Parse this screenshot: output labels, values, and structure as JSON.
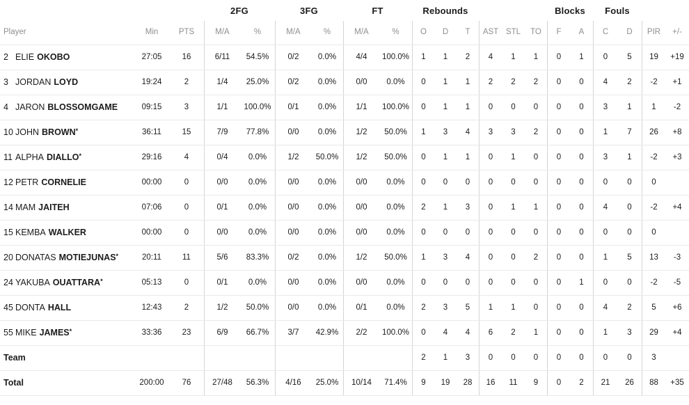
{
  "table": {
    "groups": {
      "fg2": "2FG",
      "fg3": "3FG",
      "ft": "FT",
      "rebounds": "Rebounds",
      "blocks": "Blocks",
      "fouls": "Fouls"
    },
    "columns": {
      "player": "Player",
      "min": "Min",
      "pts": "PTS",
      "ma2": "M/A",
      "pct2": "%",
      "ma3": "M/A",
      "pct3": "%",
      "maft": "M/A",
      "pctft": "%",
      "o": "O",
      "d": "D",
      "t": "T",
      "ast": "AST",
      "stl": "STL",
      "to": "TO",
      "bf": "F",
      "ba": "A",
      "fc": "C",
      "fd": "D",
      "pir": "PIR",
      "pm": "+/-"
    },
    "rows": [
      {
        "type": "player",
        "num": "2",
        "first": "ELIE",
        "last": "OKOBO",
        "star": "",
        "min": "27:05",
        "pts": "16",
        "ma2": "6/11",
        "pct2": "54.5%",
        "ma3": "0/2",
        "pct3": "0.0%",
        "maft": "4/4",
        "pctft": "100.0%",
        "o": "1",
        "d": "1",
        "t": "2",
        "ast": "4",
        "stl": "1",
        "to": "1",
        "bf": "0",
        "ba": "1",
        "fc": "0",
        "fd": "5",
        "pir": "19",
        "pm": "+19"
      },
      {
        "type": "player",
        "num": "3",
        "first": "JORDAN",
        "last": "LOYD",
        "star": "",
        "min": "19:24",
        "pts": "2",
        "ma2": "1/4",
        "pct2": "25.0%",
        "ma3": "0/2",
        "pct3": "0.0%",
        "maft": "0/0",
        "pctft": "0.0%",
        "o": "0",
        "d": "1",
        "t": "1",
        "ast": "2",
        "stl": "2",
        "to": "2",
        "bf": "0",
        "ba": "0",
        "fc": "4",
        "fd": "2",
        "pir": "-2",
        "pm": "+1"
      },
      {
        "type": "player",
        "num": "4",
        "first": "JARON",
        "last": "BLOSSOMGAME",
        "star": "",
        "min": "09:15",
        "pts": "3",
        "ma2": "1/1",
        "pct2": "100.0%",
        "ma3": "0/1",
        "pct3": "0.0%",
        "maft": "1/1",
        "pctft": "100.0%",
        "o": "0",
        "d": "1",
        "t": "1",
        "ast": "0",
        "stl": "0",
        "to": "0",
        "bf": "0",
        "ba": "0",
        "fc": "3",
        "fd": "1",
        "pir": "1",
        "pm": "-2"
      },
      {
        "type": "player",
        "num": "10",
        "first": "JOHN",
        "last": "BROWN",
        "star": "*",
        "min": "36:11",
        "pts": "15",
        "ma2": "7/9",
        "pct2": "77.8%",
        "ma3": "0/0",
        "pct3": "0.0%",
        "maft": "1/2",
        "pctft": "50.0%",
        "o": "1",
        "d": "3",
        "t": "4",
        "ast": "3",
        "stl": "3",
        "to": "2",
        "bf": "0",
        "ba": "0",
        "fc": "1",
        "fd": "7",
        "pir": "26",
        "pm": "+8"
      },
      {
        "type": "player",
        "num": "11",
        "first": "ALPHA",
        "last": "DIALLO",
        "star": "*",
        "min": "29:16",
        "pts": "4",
        "ma2": "0/4",
        "pct2": "0.0%",
        "ma3": "1/2",
        "pct3": "50.0%",
        "maft": "1/2",
        "pctft": "50.0%",
        "o": "0",
        "d": "1",
        "t": "1",
        "ast": "0",
        "stl": "1",
        "to": "0",
        "bf": "0",
        "ba": "0",
        "fc": "3",
        "fd": "1",
        "pir": "-2",
        "pm": "+3"
      },
      {
        "type": "player",
        "num": "12",
        "first": "PETR",
        "last": "CORNELIE",
        "star": "",
        "min": "00:00",
        "pts": "0",
        "ma2": "0/0",
        "pct2": "0.0%",
        "ma3": "0/0",
        "pct3": "0.0%",
        "maft": "0/0",
        "pctft": "0.0%",
        "o": "0",
        "d": "0",
        "t": "0",
        "ast": "0",
        "stl": "0",
        "to": "0",
        "bf": "0",
        "ba": "0",
        "fc": "0",
        "fd": "0",
        "pir": "0",
        "pm": ""
      },
      {
        "type": "player",
        "num": "14",
        "first": "MAM",
        "last": "JAITEH",
        "star": "",
        "min": "07:06",
        "pts": "0",
        "ma2": "0/1",
        "pct2": "0.0%",
        "ma3": "0/0",
        "pct3": "0.0%",
        "maft": "0/0",
        "pctft": "0.0%",
        "o": "2",
        "d": "1",
        "t": "3",
        "ast": "0",
        "stl": "1",
        "to": "1",
        "bf": "0",
        "ba": "0",
        "fc": "4",
        "fd": "0",
        "pir": "-2",
        "pm": "+4"
      },
      {
        "type": "player",
        "num": "15",
        "first": "KEMBA",
        "last": "WALKER",
        "star": "",
        "min": "00:00",
        "pts": "0",
        "ma2": "0/0",
        "pct2": "0.0%",
        "ma3": "0/0",
        "pct3": "0.0%",
        "maft": "0/0",
        "pctft": "0.0%",
        "o": "0",
        "d": "0",
        "t": "0",
        "ast": "0",
        "stl": "0",
        "to": "0",
        "bf": "0",
        "ba": "0",
        "fc": "0",
        "fd": "0",
        "pir": "0",
        "pm": ""
      },
      {
        "type": "player",
        "num": "20",
        "first": "DONATAS",
        "last": "MOTIEJUNAS",
        "star": "*",
        "min": "20:11",
        "pts": "11",
        "ma2": "5/6",
        "pct2": "83.3%",
        "ma3": "0/2",
        "pct3": "0.0%",
        "maft": "1/2",
        "pctft": "50.0%",
        "o": "1",
        "d": "3",
        "t": "4",
        "ast": "0",
        "stl": "0",
        "to": "2",
        "bf": "0",
        "ba": "0",
        "fc": "1",
        "fd": "5",
        "pir": "13",
        "pm": "-3"
      },
      {
        "type": "player",
        "num": "24",
        "first": "YAKUBA",
        "last": "OUATTARA",
        "star": "*",
        "min": "05:13",
        "pts": "0",
        "ma2": "0/1",
        "pct2": "0.0%",
        "ma3": "0/0",
        "pct3": "0.0%",
        "maft": "0/0",
        "pctft": "0.0%",
        "o": "0",
        "d": "0",
        "t": "0",
        "ast": "0",
        "stl": "0",
        "to": "0",
        "bf": "0",
        "ba": "1",
        "fc": "0",
        "fd": "0",
        "pir": "-2",
        "pm": "-5"
      },
      {
        "type": "player",
        "num": "45",
        "first": "DONTA",
        "last": "HALL",
        "star": "",
        "min": "12:43",
        "pts": "2",
        "ma2": "1/2",
        "pct2": "50.0%",
        "ma3": "0/0",
        "pct3": "0.0%",
        "maft": "0/1",
        "pctft": "0.0%",
        "o": "2",
        "d": "3",
        "t": "5",
        "ast": "1",
        "stl": "1",
        "to": "0",
        "bf": "0",
        "ba": "0",
        "fc": "4",
        "fd": "2",
        "pir": "5",
        "pm": "+6"
      },
      {
        "type": "player",
        "num": "55",
        "first": "MIKE",
        "last": "JAMES",
        "star": "*",
        "min": "33:36",
        "pts": "23",
        "ma2": "6/9",
        "pct2": "66.7%",
        "ma3": "3/7",
        "pct3": "42.9%",
        "maft": "2/2",
        "pctft": "100.0%",
        "o": "0",
        "d": "4",
        "t": "4",
        "ast": "6",
        "stl": "2",
        "to": "1",
        "bf": "0",
        "ba": "0",
        "fc": "1",
        "fd": "3",
        "pir": "29",
        "pm": "+4"
      },
      {
        "type": "team",
        "num": "",
        "first": "",
        "last": "Team",
        "star": "",
        "min": "",
        "pts": "",
        "ma2": "",
        "pct2": "",
        "ma3": "",
        "pct3": "",
        "maft": "",
        "pctft": "",
        "o": "2",
        "d": "1",
        "t": "3",
        "ast": "0",
        "stl": "0",
        "to": "0",
        "bf": "0",
        "ba": "0",
        "fc": "0",
        "fd": "0",
        "pir": "3",
        "pm": ""
      },
      {
        "type": "total",
        "num": "",
        "first": "",
        "last": "Total",
        "star": "",
        "min": "200:00",
        "pts": "76",
        "ma2": "27/48",
        "pct2": "56.3%",
        "ma3": "4/16",
        "pct3": "25.0%",
        "maft": "10/14",
        "pctft": "71.4%",
        "o": "9",
        "d": "19",
        "t": "28",
        "ast": "16",
        "stl": "11",
        "to": "9",
        "bf": "0",
        "ba": "2",
        "fc": "21",
        "fd": "26",
        "pir": "88",
        "pm": "+35"
      }
    ]
  }
}
